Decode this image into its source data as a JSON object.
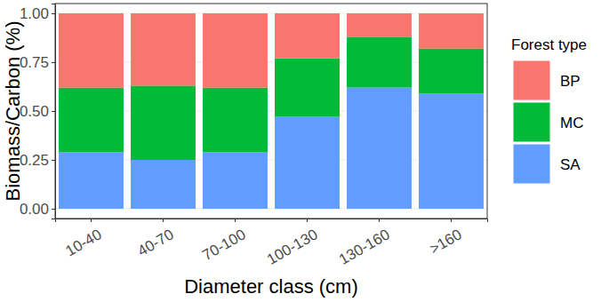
{
  "chart_data": {
    "type": "bar",
    "stacked": true,
    "grid": true,
    "legend": "right",
    "x_label": "Diameter class (cm)",
    "y_label": "Biomass/Carbon (%)",
    "legend_title": "Forest type",
    "categories": [
      "10-40",
      "40-70",
      "70-100",
      "100-130",
      "130-160",
      ">160"
    ],
    "series": [
      {
        "name": "SA",
        "color": "#619CFF",
        "values": [
          0.29,
          0.25,
          0.29,
          0.47,
          0.62,
          0.59
        ]
      },
      {
        "name": "MC",
        "color": "#00BA38",
        "values": [
          0.33,
          0.38,
          0.33,
          0.3,
          0.26,
          0.23
        ]
      },
      {
        "name": "BP",
        "color": "#F8766D",
        "values": [
          0.38,
          0.37,
          0.38,
          0.23,
          0.12,
          0.18
        ]
      }
    ],
    "ylim": [
      -0.05,
      1.05
    ],
    "yticks": [
      {
        "value": 0,
        "label": "0.00"
      },
      {
        "value": 0.25,
        "label": "0.25"
      },
      {
        "value": 0.5,
        "label": "0.50"
      },
      {
        "value": 0.75,
        "label": "0.75"
      },
      {
        "value": 1,
        "label": "1.00"
      }
    ]
  }
}
